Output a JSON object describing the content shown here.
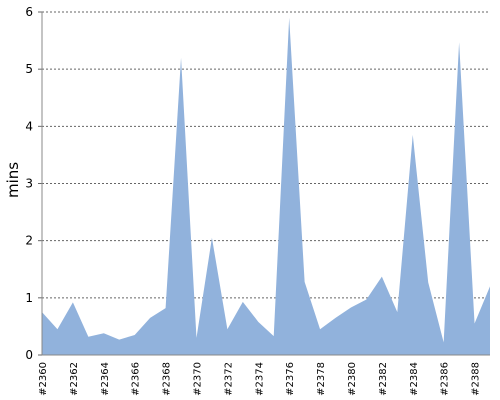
{
  "chart_data": {
    "type": "area",
    "y_label": "mins",
    "categories": [
      "#2360",
      null,
      "#2362",
      null,
      "#2364",
      null,
      "#2366",
      null,
      "#2368",
      null,
      "#2370",
      null,
      "#2372",
      null,
      "#2374",
      null,
      "#2376",
      null,
      "#2378",
      null,
      "#2380",
      null,
      "#2382",
      null,
      "#2384",
      null,
      "#2386",
      null,
      "#2388",
      null
    ],
    "values": [
      0.75,
      0.45,
      0.92,
      0.32,
      0.38,
      0.27,
      0.35,
      0.65,
      0.82,
      5.2,
      0.3,
      2.05,
      0.45,
      0.93,
      0.58,
      0.33,
      5.9,
      1.28,
      0.45,
      0.65,
      0.83,
      0.97,
      1.37,
      0.75,
      3.85,
      1.27,
      0.22,
      5.47,
      0.55,
      1.2
    ],
    "color": "#91b2dc",
    "ylim": [
      0,
      6
    ],
    "yticks": [
      0,
      1,
      2,
      3,
      4,
      5,
      6
    ],
    "grid": true
  }
}
